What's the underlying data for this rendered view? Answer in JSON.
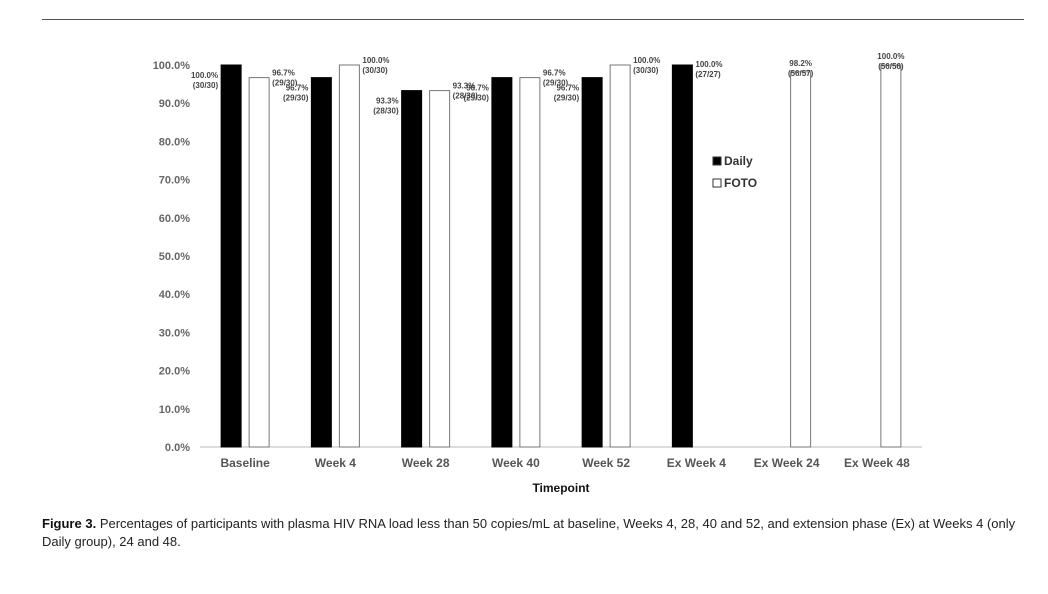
{
  "chart_data": {
    "type": "bar",
    "title": "",
    "xlabel": "Timepoint",
    "ylabel": "",
    "ylim": [
      0,
      100
    ],
    "yticks": [
      "0.0%",
      "10.0%",
      "20.0%",
      "30.0%",
      "40.0%",
      "50.0%",
      "60.0%",
      "70.0%",
      "80.0%",
      "90.0%",
      "100.0%"
    ],
    "categories": [
      "Baseline",
      "Week 4",
      "Week 28",
      "Week 40",
      "Week 52",
      "Ex Week 4",
      "Ex Week 24",
      "Ex Week 48"
    ],
    "legend_position": "right",
    "series": [
      {
        "name": "Daily",
        "color": "#000000",
        "values": [
          100.0,
          96.7,
          93.3,
          96.7,
          96.7,
          100.0,
          null,
          null
        ],
        "labels": [
          "100.0%\n(30/30)",
          "96.7%\n(29/30)",
          "93.3%\n(28/30)",
          "96.7%\n(29/30)",
          "96.7%\n(29/30)",
          "100.0%\n(27/27)",
          null,
          null
        ]
      },
      {
        "name": "FOTO",
        "color": "#ffffff",
        "values": [
          96.7,
          100.0,
          93.3,
          96.7,
          100.0,
          null,
          98.2,
          100.0
        ],
        "labels": [
          "96.7%\n(29/30)",
          "100.0%\n(30/30)",
          "93.3%\n(28/30)",
          "96.7%\n(29/30)",
          "100.0%\n(30/30)",
          null,
          "98.2%\n(56/57)",
          "100.0%\n(56/56)"
        ]
      }
    ]
  },
  "caption": {
    "label": "Figure 3.",
    "text": "Percentages of participants with plasma HIV RNA load less than 50 copies/mL at baseline, Weeks 4, 28, 40 and 52, and extension phase (Ex) at Weeks 4 (only Daily group), 24 and 48."
  }
}
